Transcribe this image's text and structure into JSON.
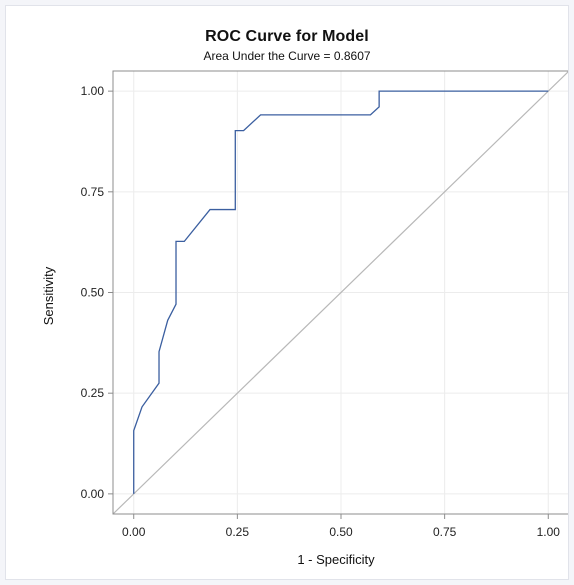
{
  "chart_data": {
    "type": "line",
    "title": "ROC Curve for Model",
    "subtitle": "Area Under the Curve = 0.8607",
    "xlabel": "1 - Specificity",
    "ylabel": "Sensitivity",
    "xlim": [
      -0.05,
      1.05
    ],
    "ylim": [
      -0.05,
      1.05
    ],
    "x_ticks": [
      0,
      0.25,
      0.5,
      0.75,
      1
    ],
    "y_ticks": [
      0,
      0.25,
      0.5,
      0.75,
      1
    ],
    "x_tick_labels": [
      "0.00",
      "0.25",
      "0.50",
      "0.75",
      "1.00"
    ],
    "y_tick_labels": [
      "0.00",
      "0.25",
      "0.50",
      "0.75",
      "1.00"
    ],
    "grid": true,
    "series": [
      {
        "color": "#3b5fa0",
        "points": [
          [
            0.0,
            0.0
          ],
          [
            0.0,
            0.157
          ],
          [
            0.02,
            0.216
          ],
          [
            0.061,
            0.275
          ],
          [
            0.061,
            0.353
          ],
          [
            0.082,
            0.431
          ],
          [
            0.102,
            0.471
          ],
          [
            0.102,
            0.627
          ],
          [
            0.122,
            0.627
          ],
          [
            0.184,
            0.706
          ],
          [
            0.245,
            0.706
          ],
          [
            0.245,
            0.902
          ],
          [
            0.265,
            0.902
          ],
          [
            0.306,
            0.941
          ],
          [
            0.571,
            0.941
          ],
          [
            0.592,
            0.961
          ],
          [
            0.592,
            1.0
          ],
          [
            1.0,
            1.0
          ]
        ]
      },
      {
        "color": "#b8b8b8",
        "points": [
          [
            -0.05,
            -0.05
          ],
          [
            1.05,
            1.05
          ]
        ]
      }
    ]
  }
}
